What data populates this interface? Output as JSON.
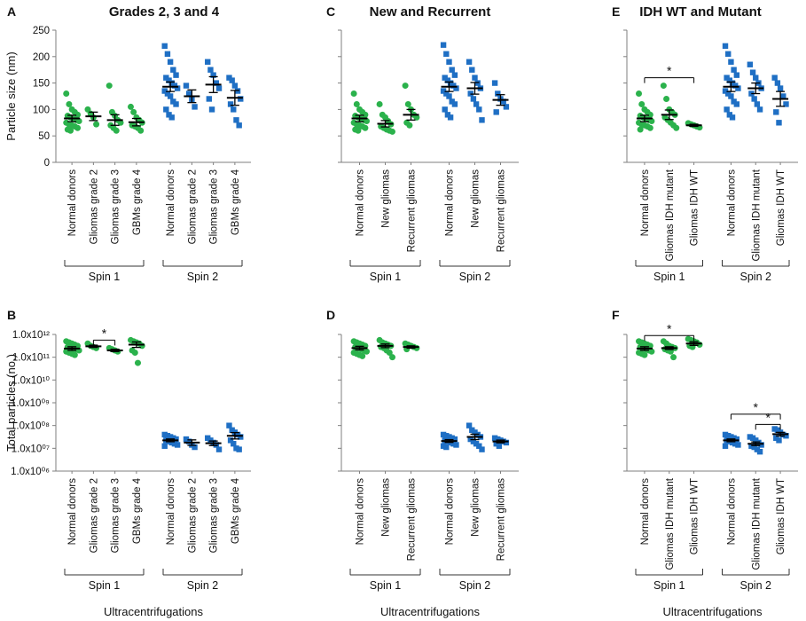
{
  "colors": {
    "spin1": "#2bb24c",
    "spin2": "#1f6fc4",
    "axis": "#7f7f7f",
    "mean": "#000000"
  },
  "chart_data": [
    {
      "id": "A",
      "type": "scatter",
      "title": "Grades 2, 3 and 4",
      "ylabel": "Particle size (nm)",
      "yscale": "linear",
      "ylim": [
        0,
        250
      ],
      "yticks": [
        "0",
        "50",
        "100",
        "150",
        "200",
        "250"
      ],
      "groups": [
        {
          "name": "Spin 1",
          "series": [
            {
              "name": "Normal donors",
              "mean": 83,
              "sem": 6,
              "values": [
                130,
                110,
                100,
                95,
                90,
                88,
                85,
                82,
                80,
                78,
                75,
                72,
                70,
                68,
                65,
                62,
                60
              ]
            },
            {
              "name": "Gliomas grade 2",
              "mean": 87,
              "sem": 8,
              "values": [
                100,
                92,
                85,
                72
              ]
            },
            {
              "name": "Gliomas grade 3",
              "mean": 80,
              "sem": 10,
              "values": [
                145,
                95,
                88,
                80,
                75,
                70,
                65,
                60
              ]
            },
            {
              "name": "GBMs grade 4",
              "mean": 76,
              "sem": 7,
              "values": [
                105,
                95,
                85,
                80,
                75,
                70,
                68,
                65,
                60
              ]
            }
          ]
        },
        {
          "name": "Spin 2",
          "series": [
            {
              "name": "Normal donors",
              "mean": 143,
              "sem": 9,
              "values": [
                220,
                205,
                190,
                175,
                165,
                160,
                155,
                150,
                145,
                140,
                135,
                130,
                125,
                115,
                110,
                100,
                90,
                85
              ]
            },
            {
              "name": "Gliomas grade 2",
              "mean": 125,
              "sem": 12,
              "values": [
                145,
                130,
                118,
                105
              ]
            },
            {
              "name": "Gliomas grade 3",
              "mean": 147,
              "sem": 15,
              "values": [
                190,
                175,
                165,
                150,
                140,
                120,
                100
              ]
            },
            {
              "name": "GBMs grade 4",
              "mean": 122,
              "sem": 14,
              "values": [
                160,
                155,
                145,
                135,
                120,
                110,
                100,
                80,
                70
              ]
            }
          ]
        }
      ],
      "significance": []
    },
    {
      "id": "C",
      "type": "scatter",
      "title": "New and Recurrent",
      "ylabel": "",
      "yscale": "linear",
      "ylim": [
        0,
        250
      ],
      "yticks": [],
      "groups": [
        {
          "name": "Spin 1",
          "series": [
            {
              "name": "Normal donors",
              "mean": 83,
              "sem": 6,
              "values": [
                130,
                110,
                100,
                95,
                90,
                88,
                85,
                82,
                80,
                78,
                75,
                72,
                70,
                68,
                65,
                62,
                60
              ]
            },
            {
              "name": "New gliomas",
              "mean": 73,
              "sem": 6,
              "values": [
                110,
                90,
                85,
                78,
                72,
                68,
                65,
                62,
                60,
                58
              ]
            },
            {
              "name": "Recurrent gliomas",
              "mean": 90,
              "sem": 10,
              "values": [
                145,
                110,
                100,
                90,
                85,
                75,
                70
              ]
            }
          ]
        },
        {
          "name": "Spin 2",
          "series": [
            {
              "name": "Normal donors",
              "mean": 143,
              "sem": 9,
              "values": [
                222,
                205,
                190,
                175,
                165,
                160,
                155,
                150,
                145,
                140,
                135,
                130,
                125,
                115,
                110,
                100,
                90,
                85
              ]
            },
            {
              "name": "New gliomas",
              "mean": 140,
              "sem": 11,
              "values": [
                190,
                175,
                160,
                150,
                140,
                130,
                120,
                110,
                100,
                80
              ]
            },
            {
              "name": "Recurrent gliomas",
              "mean": 118,
              "sem": 10,
              "values": [
                150,
                130,
                120,
                115,
                105,
                95
              ]
            }
          ]
        }
      ],
      "significance": []
    },
    {
      "id": "E",
      "type": "scatter",
      "title": "IDH WT and Mutant",
      "ylabel": "",
      "yscale": "linear",
      "ylim": [
        0,
        250
      ],
      "yticks": [],
      "groups": [
        {
          "name": "Spin 1",
          "series": [
            {
              "name": "Normal donors",
              "mean": 83,
              "sem": 6,
              "values": [
                130,
                110,
                100,
                95,
                90,
                88,
                85,
                82,
                80,
                78,
                75,
                72,
                70,
                68,
                65,
                62
              ]
            },
            {
              "name": "Gliomas IDH mutant",
              "mean": 90,
              "sem": 9,
              "values": [
                145,
                120,
                100,
                95,
                90,
                85,
                80,
                75,
                70,
                65
              ]
            },
            {
              "name": "Gliomas IDH WT",
              "mean": 70,
              "sem": 2,
              "values": [
                74,
                72,
                70,
                68,
                66
              ]
            }
          ]
        },
        {
          "name": "Spin 2",
          "series": [
            {
              "name": "Normal donors",
              "mean": 143,
              "sem": 9,
              "values": [
                220,
                205,
                190,
                175,
                165,
                160,
                155,
                150,
                145,
                140,
                135,
                130,
                125,
                115,
                110,
                100,
                90,
                85
              ]
            },
            {
              "name": "Gliomas IDH mutant",
              "mean": 140,
              "sem": 10,
              "values": [
                185,
                170,
                160,
                150,
                140,
                130,
                120,
                110,
                100
              ]
            },
            {
              "name": "Gliomas IDH WT",
              "mean": 120,
              "sem": 14,
              "values": [
                160,
                150,
                140,
                125,
                110,
                95,
                75
              ]
            }
          ]
        }
      ],
      "significance": [
        {
          "group": "Spin 1",
          "from": 0,
          "to": 2,
          "label": "*",
          "y": 160
        }
      ]
    },
    {
      "id": "B",
      "type": "scatter",
      "title": "",
      "ylabel": "Total particles (no.)",
      "yscale": "log",
      "ylim": [
        6,
        12
      ],
      "yticks": [
        "1.0x10¹²",
        "1.0x10¹¹",
        "1.0x10¹⁰",
        "1.0x10⁰⁹",
        "1.0x10⁰⁸",
        "1.0x10⁰⁷",
        "1.0x10⁰⁶"
      ],
      "xlabel": "Ultracentrifugations",
      "groups": [
        {
          "name": "Spin 1",
          "series": [
            {
              "name": "Normal donors",
              "mean": 11.38,
              "sem": 0.08,
              "values": [
                11.7,
                11.65,
                11.6,
                11.55,
                11.5,
                11.45,
                11.4,
                11.38,
                11.35,
                11.3,
                11.25,
                11.2,
                11.15,
                11.1
              ]
            },
            {
              "name": "Gliomas grade 2",
              "mean": 11.48,
              "sem": 0.05,
              "values": [
                11.6,
                11.5,
                11.45,
                11.4
              ]
            },
            {
              "name": "Gliomas grade 3",
              "mean": 11.3,
              "sem": 0.05,
              "values": [
                11.4,
                11.35,
                11.3,
                11.25
              ]
            },
            {
              "name": "GBMs grade 4",
              "mean": 11.55,
              "sem": 0.12,
              "values": [
                11.75,
                11.7,
                11.65,
                11.6,
                11.5,
                11.3,
                11.2,
                10.75
              ]
            }
          ]
        },
        {
          "name": "Spin 2",
          "series": [
            {
              "name": "Normal donors",
              "mean": 7.35,
              "sem": 0.06,
              "values": [
                7.6,
                7.55,
                7.5,
                7.45,
                7.4,
                7.35,
                7.3,
                7.25,
                7.2,
                7.15,
                7.1
              ]
            },
            {
              "name": "Gliomas grade 2",
              "mean": 7.25,
              "sem": 0.12,
              "values": [
                7.4,
                7.3,
                7.15,
                7.05
              ]
            },
            {
              "name": "Gliomas grade 3",
              "mean": 7.22,
              "sem": 0.1,
              "values": [
                7.45,
                7.35,
                7.25,
                7.15,
                6.95
              ]
            },
            {
              "name": "GBMs grade 4",
              "mean": 7.55,
              "sem": 0.14,
              "values": [
                8.0,
                7.8,
                7.7,
                7.6,
                7.5,
                7.35,
                7.2,
                7.0,
                6.95
              ]
            }
          ]
        }
      ],
      "significance": [
        {
          "group": "Spin 1",
          "from": 1,
          "to": 2,
          "label": "*",
          "y": 11.75
        }
      ]
    },
    {
      "id": "D",
      "type": "scatter",
      "title": "",
      "ylabel": "",
      "yscale": "log",
      "ylim": [
        6,
        12
      ],
      "yticks": [],
      "xlabel": "Ultracentrifugations",
      "groups": [
        {
          "name": "Spin 1",
          "series": [
            {
              "name": "Normal donors",
              "mean": 11.4,
              "sem": 0.08,
              "values": [
                11.7,
                11.65,
                11.6,
                11.55,
                11.5,
                11.45,
                11.4,
                11.35,
                11.3,
                11.25,
                11.2,
                11.15,
                11.1,
                11.05
              ]
            },
            {
              "name": "New gliomas",
              "mean": 11.5,
              "sem": 0.08,
              "values": [
                11.75,
                11.65,
                11.6,
                11.55,
                11.5,
                11.45,
                11.4,
                11.3,
                11.2,
                11.0
              ]
            },
            {
              "name": "Recurrent gliomas",
              "mean": 11.45,
              "sem": 0.05,
              "values": [
                11.6,
                11.55,
                11.5,
                11.45,
                11.4,
                11.35
              ]
            }
          ]
        },
        {
          "name": "Spin 2",
          "series": [
            {
              "name": "Normal donors",
              "mean": 7.32,
              "sem": 0.06,
              "values": [
                7.6,
                7.55,
                7.5,
                7.45,
                7.4,
                7.35,
                7.3,
                7.25,
                7.2,
                7.15,
                7.1,
                7.05
              ]
            },
            {
              "name": "New gliomas",
              "mean": 7.5,
              "sem": 0.12,
              "values": [
                8.0,
                7.8,
                7.7,
                7.6,
                7.5,
                7.4,
                7.3,
                7.2,
                7.1,
                6.95
              ]
            },
            {
              "name": "Recurrent gliomas",
              "mean": 7.3,
              "sem": 0.06,
              "values": [
                7.45,
                7.4,
                7.35,
                7.3,
                7.25,
                7.2,
                7.1
              ]
            }
          ]
        }
      ],
      "significance": []
    },
    {
      "id": "F",
      "type": "scatter",
      "title": "",
      "ylabel": "",
      "yscale": "log",
      "ylim": [
        6,
        12
      ],
      "yticks": [],
      "xlabel": "Ultracentrifugations",
      "groups": [
        {
          "name": "Spin 1",
          "series": [
            {
              "name": "Normal donors",
              "mean": 11.38,
              "sem": 0.08,
              "values": [
                11.7,
                11.65,
                11.6,
                11.55,
                11.5,
                11.45,
                11.4,
                11.35,
                11.3,
                11.25,
                11.2,
                11.15,
                11.1
              ]
            },
            {
              "name": "Gliomas IDH mutant",
              "mean": 11.4,
              "sem": 0.06,
              "values": [
                11.7,
                11.6,
                11.5,
                11.45,
                11.4,
                11.35,
                11.3,
                11.25,
                11.0
              ]
            },
            {
              "name": "Gliomas IDH WT",
              "mean": 11.6,
              "sem": 0.08,
              "values": [
                11.8,
                11.75,
                11.7,
                11.65,
                11.55,
                11.5,
                11.45
              ]
            }
          ]
        },
        {
          "name": "Spin 2",
          "series": [
            {
              "name": "Normal donors",
              "mean": 7.35,
              "sem": 0.06,
              "values": [
                7.6,
                7.55,
                7.5,
                7.45,
                7.4,
                7.35,
                7.3,
                7.25,
                7.2,
                7.15,
                7.1
              ]
            },
            {
              "name": "Gliomas IDH mutant",
              "mean": 7.2,
              "sem": 0.08,
              "values": [
                7.5,
                7.45,
                7.35,
                7.25,
                7.15,
                7.1,
                7.05,
                6.95,
                6.85
              ]
            },
            {
              "name": "Gliomas IDH WT",
              "mean": 7.62,
              "sem": 0.08,
              "values": [
                7.85,
                7.8,
                7.7,
                7.6,
                7.55,
                7.45,
                7.35
              ]
            }
          ]
        }
      ],
      "significance": [
        {
          "group": "Spin 1",
          "from": 0,
          "to": 2,
          "label": "*",
          "y": 11.95
        },
        {
          "group": "Spin 2",
          "from": 0,
          "to": 2,
          "label": "*",
          "y": 8.5
        },
        {
          "group": "Spin 2",
          "from": 1,
          "to": 2,
          "label": "*",
          "y": 8.05
        }
      ]
    }
  ]
}
